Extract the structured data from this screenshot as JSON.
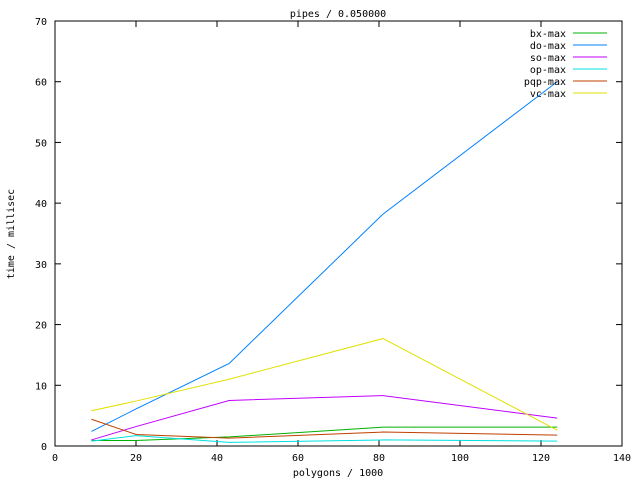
{
  "chart_data": {
    "type": "line",
    "title": "pipes / 0.050000",
    "xlabel": "polygons / 1000",
    "ylabel": "time / millisec",
    "xlim": [
      0,
      140
    ],
    "ylim": [
      0,
      70
    ],
    "xticks": [
      "0",
      "20",
      "40",
      "60",
      "80",
      "100",
      "120",
      "140"
    ],
    "yticks": [
      "0",
      "10",
      "20",
      "30",
      "40",
      "50",
      "60",
      "70"
    ],
    "grid": false,
    "legend_position": "top-right",
    "x": [
      9,
      20,
      43,
      81,
      124
    ],
    "series": [
      {
        "name": "bx-max",
        "color": "#00b000",
        "values": [
          0.9,
          0.9,
          1.5,
          3.1,
          3.1
        ]
      },
      {
        "name": "do-max",
        "color": "#0080ff",
        "values": [
          2.4,
          6.1,
          13.6,
          38.2,
          60.0
        ]
      },
      {
        "name": "so-max",
        "color": "#c000ff",
        "values": [
          1.0,
          3.2,
          7.5,
          8.3,
          4.6
        ]
      },
      {
        "name": "op-max",
        "color": "#00e0e0",
        "values": [
          0.8,
          1.7,
          0.6,
          1.0,
          0.8
        ]
      },
      {
        "name": "pqp-max",
        "color": "#c04000",
        "values": [
          4.4,
          1.9,
          1.3,
          2.3,
          1.8
        ]
      },
      {
        "name": "vc-max",
        "color": "#e0e000",
        "values": [
          5.8,
          7.4,
          11.0,
          17.7,
          2.6
        ]
      }
    ]
  }
}
